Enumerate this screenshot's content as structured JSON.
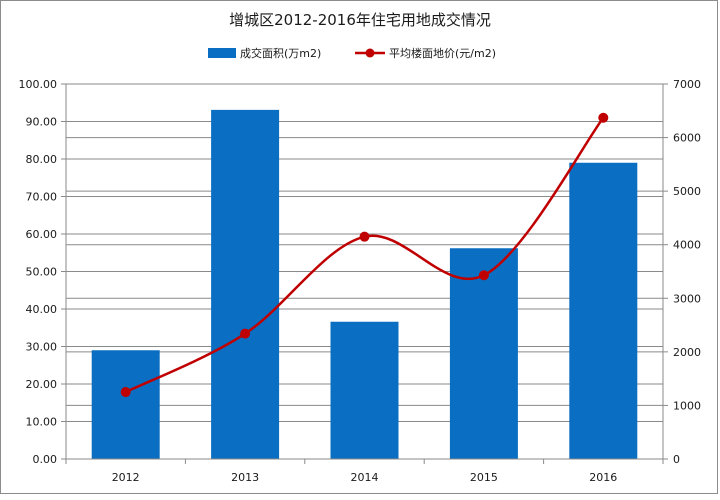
{
  "chart_data": {
    "type": "bar",
    "title": "增城区2012-2016年住宅用地成交情况",
    "categories": [
      "2012",
      "2013",
      "2014",
      "2015",
      "2016"
    ],
    "series": [
      {
        "name": "成交面积(万m2)",
        "type": "bar",
        "axis": "left",
        "color": "#0a6fc2",
        "values": [
          29.0,
          93.1,
          36.6,
          56.2,
          79.0
        ]
      },
      {
        "name": "平均楼面地价(元/m2)",
        "type": "line",
        "axis": "right",
        "color": "#c00000",
        "smooth": true,
        "values": [
          1250,
          2340,
          4150,
          3430,
          6370
        ]
      }
    ],
    "y_left": {
      "lim": [
        0,
        100
      ],
      "ticks": [
        "0.00",
        "10.00",
        "20.00",
        "30.00",
        "40.00",
        "50.00",
        "60.00",
        "70.00",
        "80.00",
        "90.00",
        "100.00"
      ]
    },
    "y_right": {
      "lim": [
        0,
        7000
      ],
      "ticks": [
        "0",
        "1000",
        "2000",
        "3000",
        "4000",
        "5000",
        "6000",
        "7000"
      ]
    },
    "grid": true,
    "legend": "top"
  }
}
